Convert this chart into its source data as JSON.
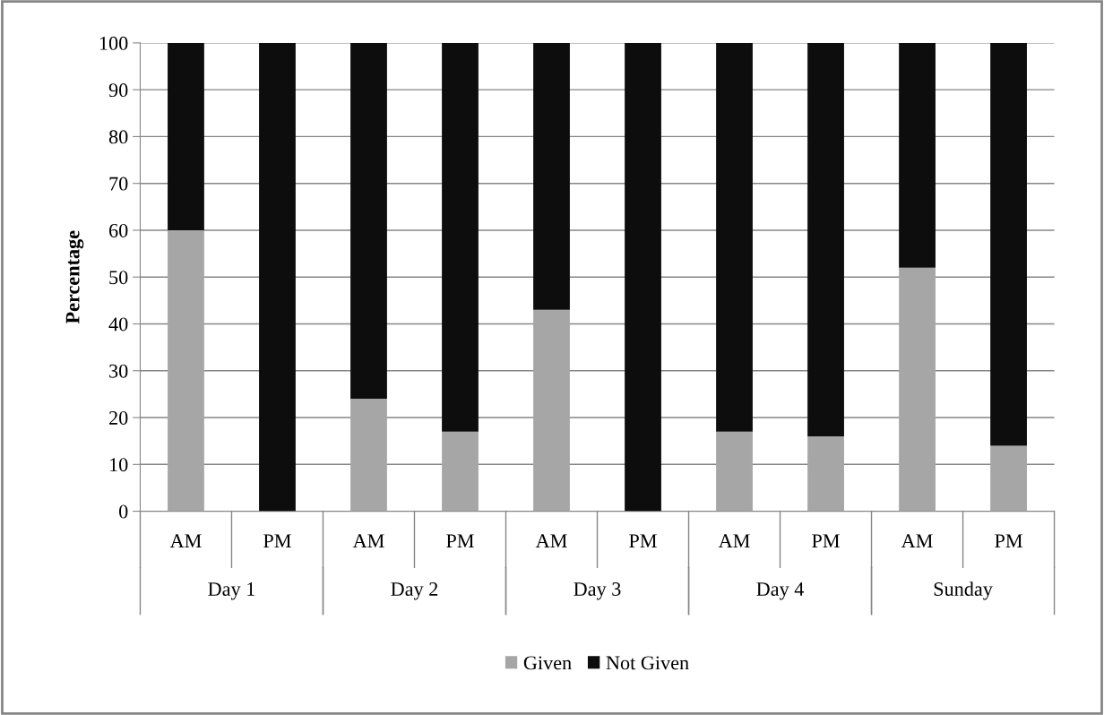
{
  "chart_data": {
    "type": "bar",
    "stacked": true,
    "ylabel": "Percentage",
    "categories": [
      "AM",
      "PM",
      "AM",
      "PM",
      "AM",
      "PM",
      "AM",
      "PM",
      "AM",
      "PM"
    ],
    "annotations": [
      "Day 1",
      "Day 2",
      "Day 3",
      "Day 4",
      "Sunday"
    ],
    "series": [
      {
        "name": "Given",
        "color": "#a6a6a6",
        "values": [
          60,
          0,
          24,
          17,
          43,
          0,
          17,
          16,
          52,
          14
        ]
      },
      {
        "name": "Not Given",
        "color": "#0d0d0d",
        "values": [
          40,
          100,
          76,
          83,
          57,
          100,
          83,
          84,
          48,
          86
        ]
      }
    ],
    "ylim": [
      0,
      100
    ],
    "yticks": [
      0,
      10,
      20,
      30,
      40,
      50,
      60,
      70,
      80,
      90,
      100
    ],
    "grid": "y",
    "legend": "bottom"
  }
}
